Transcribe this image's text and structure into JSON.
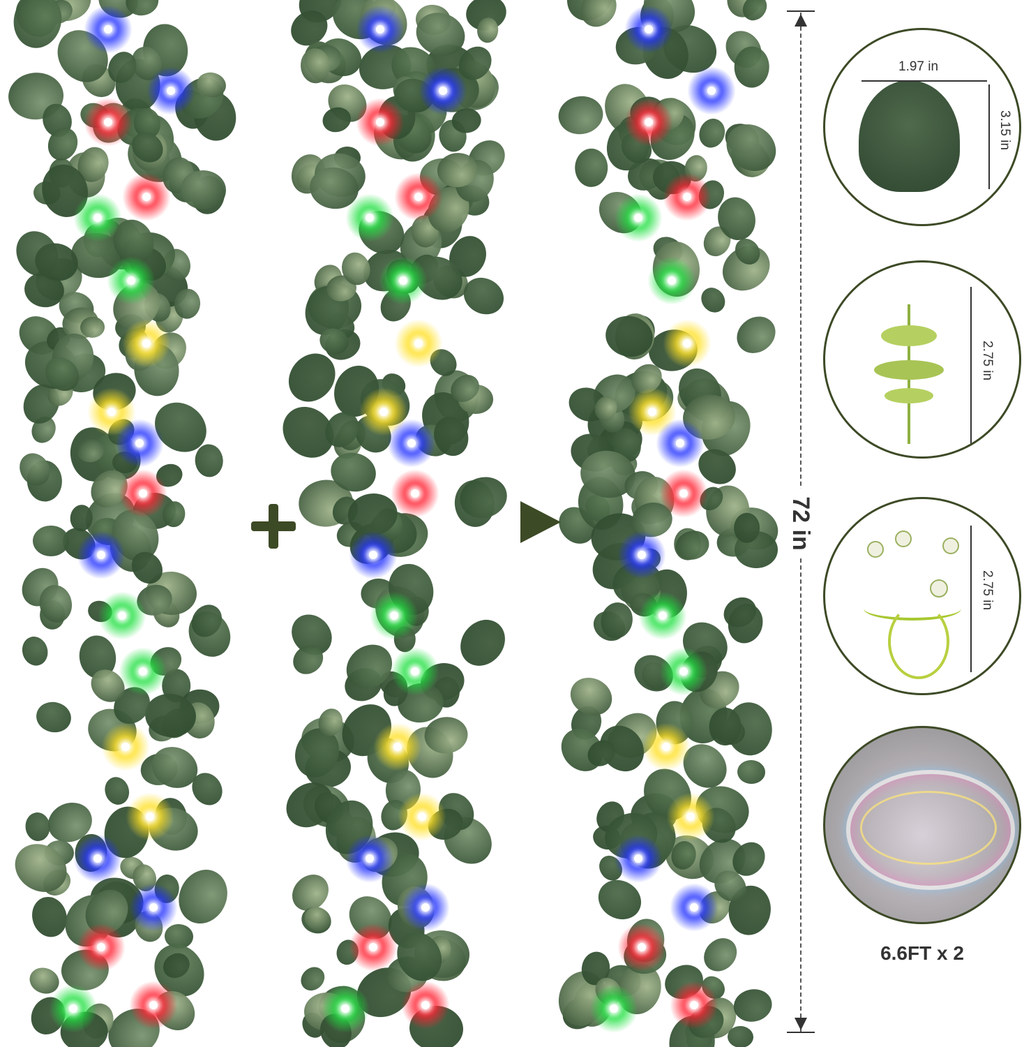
{
  "composition": {
    "plus_symbol": "+",
    "arrow_symbol": "arrow-right",
    "length_label": "72 in",
    "accent_color": "#3d4a26",
    "leaf_colors": [
      "#4e6b4a",
      "#5f7d58",
      "#3f5a3c",
      "#7a9470",
      "#9fb38a"
    ],
    "light_colors": {
      "blue": "#2030ff",
      "red": "#ff2030",
      "green": "#20e040",
      "yellow": "#ffe020"
    },
    "garlands": [
      {
        "name": "garland-1",
        "lights": [
          "blue",
          "blue",
          "red",
          "red",
          "green",
          "green",
          "yellow",
          "yellow",
          "blue",
          "red",
          "blue",
          "green",
          "green",
          "yellow",
          "yellow",
          "blue",
          "blue",
          "red",
          "green",
          "red"
        ]
      },
      {
        "name": "garland-2",
        "lights": [
          "blue",
          "blue",
          "red",
          "red",
          "green",
          "green",
          "yellow",
          "yellow",
          "blue",
          "red",
          "blue",
          "green",
          "green",
          "yellow",
          "yellow",
          "blue",
          "blue",
          "red",
          "green",
          "red"
        ]
      },
      {
        "name": "garland-3",
        "lights": [
          "blue",
          "blue",
          "red",
          "red",
          "green",
          "green",
          "yellow",
          "yellow",
          "blue",
          "red",
          "blue",
          "green",
          "green",
          "yellow",
          "yellow",
          "blue",
          "blue",
          "red",
          "green",
          "red"
        ]
      }
    ]
  },
  "details": {
    "leaf": {
      "width_label": "1.97 in",
      "height_label": "3.15 in"
    },
    "sprig": {
      "height_label": "2.75 in"
    },
    "buds": {
      "height_label": "2.75 in"
    },
    "string_lights": {
      "label": "6.6FT x 2"
    }
  }
}
